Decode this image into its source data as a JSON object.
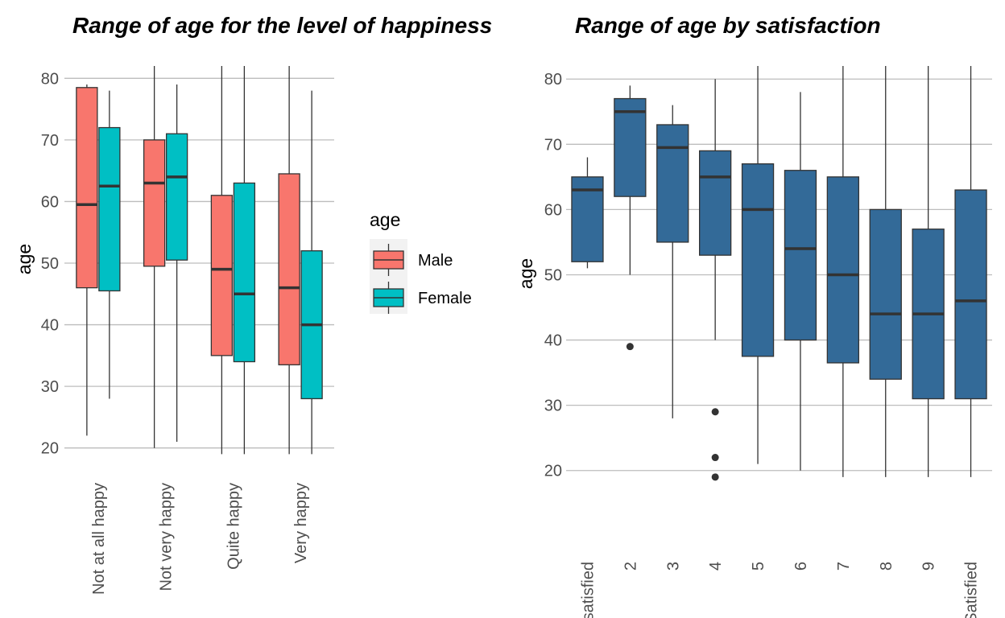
{
  "chart_data": [
    {
      "type": "boxplot",
      "title": "Range of age for the level of happiness",
      "xlabel": "",
      "ylabel": "age",
      "ylim": [
        18,
        82
      ],
      "yticks": [
        20,
        30,
        40,
        50,
        60,
        70,
        80
      ],
      "categories": [
        "Not at all happy",
        "Not very happy",
        "Quite happy",
        "Very happy"
      ],
      "grid": "horizontal",
      "legend": {
        "title": "age",
        "placement": "right"
      },
      "series": [
        {
          "name": "Male",
          "color": "#F8766D",
          "boxes": [
            {
              "whisker_low": 22,
              "q1": 46,
              "median": 59.5,
              "q3": 78.5,
              "whisker_high": 79
            },
            {
              "whisker_low": 20,
              "q1": 49.5,
              "median": 63,
              "q3": 70,
              "whisker_high": 82
            },
            {
              "whisker_low": 19,
              "q1": 35,
              "median": 49,
              "q3": 61,
              "whisker_high": 82
            },
            {
              "whisker_low": 19,
              "q1": 33.5,
              "median": 46,
              "q3": 64.5,
              "whisker_high": 82
            }
          ]
        },
        {
          "name": "Female",
          "color": "#00BFC4",
          "boxes": [
            {
              "whisker_low": 28,
              "q1": 45.5,
              "median": 62.5,
              "q3": 72,
              "whisker_high": 78
            },
            {
              "whisker_low": 21,
              "q1": 50.5,
              "median": 64,
              "q3": 71,
              "whisker_high": 79
            },
            {
              "whisker_low": 19,
              "q1": 34,
              "median": 45,
              "q3": 63,
              "whisker_high": 82
            },
            {
              "whisker_low": 19,
              "q1": 28,
              "median": 40,
              "q3": 52,
              "whisker_high": 78
            }
          ]
        }
      ]
    },
    {
      "type": "boxplot",
      "title": "Range of age by satisfaction",
      "xlabel": "",
      "ylabel": "age",
      "ylim": [
        17.5,
        82
      ],
      "yticks": [
        20,
        30,
        40,
        50,
        60,
        70,
        80
      ],
      "categories": [
        "Dissatisfied",
        "2",
        "3",
        "4",
        "5",
        "6",
        "7",
        "8",
        "9",
        "Satisfied"
      ],
      "grid": "horizontal",
      "color": "#336A98",
      "boxes": [
        {
          "whisker_low": 51,
          "q1": 52,
          "median": 63,
          "q3": 65,
          "whisker_high": 68,
          "outliers": []
        },
        {
          "whisker_low": 50,
          "q1": 62,
          "median": 75,
          "q3": 77,
          "whisker_high": 79,
          "outliers": [
            39
          ]
        },
        {
          "whisker_low": 28,
          "q1": 55,
          "median": 69.5,
          "q3": 73,
          "whisker_high": 76,
          "outliers": []
        },
        {
          "whisker_low": 40,
          "q1": 53,
          "median": 65,
          "q3": 69,
          "whisker_high": 80,
          "outliers": [
            29,
            22,
            19
          ]
        },
        {
          "whisker_low": 21,
          "q1": 37.5,
          "median": 60,
          "q3": 67,
          "whisker_high": 82,
          "outliers": []
        },
        {
          "whisker_low": 20,
          "q1": 40,
          "median": 54,
          "q3": 66,
          "whisker_high": 78,
          "outliers": []
        },
        {
          "whisker_low": 19,
          "q1": 36.5,
          "median": 50,
          "q3": 65,
          "whisker_high": 82,
          "outliers": []
        },
        {
          "whisker_low": 19,
          "q1": 34,
          "median": 44,
          "q3": 60,
          "whisker_high": 82,
          "outliers": []
        },
        {
          "whisker_low": 19,
          "q1": 31,
          "median": 44,
          "q3": 57,
          "whisker_high": 82,
          "outliers": []
        },
        {
          "whisker_low": 19,
          "q1": 31,
          "median": 46,
          "q3": 63,
          "whisker_high": 82,
          "outliers": []
        }
      ]
    }
  ]
}
